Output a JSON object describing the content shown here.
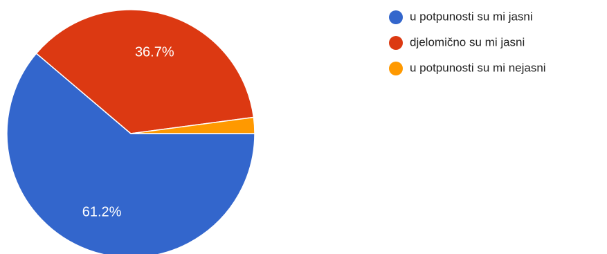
{
  "chart_data": {
    "type": "pie",
    "title": "",
    "slices": [
      {
        "label": "u potpunosti su mi jasni",
        "value": 61.2,
        "display": "61.2%",
        "color": "#3366cc"
      },
      {
        "label": "djelomično su mi jasni",
        "value": 36.7,
        "display": "36.7%",
        "color": "#dc3912"
      },
      {
        "label": "u potpunosti su mi nejasni",
        "value": 2.1,
        "display": "",
        "color": "#ff9900"
      }
    ],
    "start_angle_deg": 0,
    "direction": "clockwise",
    "legend_position": "right"
  }
}
